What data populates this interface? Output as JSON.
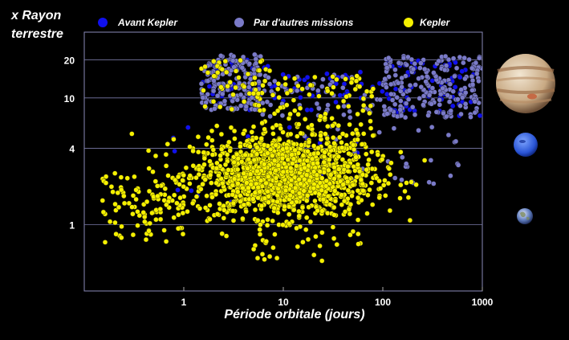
{
  "chart_data": {
    "type": "scatter",
    "ylabel_line1": "x Rayon",
    "ylabel_line2": "terrestre",
    "xlabel": "Période orbitale (jours)",
    "x_scale": "log",
    "y_scale": "log",
    "xlim": [
      0.1,
      1000
    ],
    "ylim": [
      0.3,
      33
    ],
    "x_ticks": [
      {
        "value": 1,
        "label": "1"
      },
      {
        "value": 10,
        "label": "10"
      },
      {
        "value": 100,
        "label": "100"
      },
      {
        "value": 1000,
        "label": "1000"
      }
    ],
    "y_ticks": [
      {
        "value": 1,
        "label": "1"
      },
      {
        "value": 4,
        "label": "4"
      },
      {
        "value": 10,
        "label": "10"
      },
      {
        "value": 20,
        "label": "20"
      }
    ],
    "grid": "horizontal",
    "legend_position": "top",
    "series": [
      {
        "name": "Avant Kepler",
        "color": "#1010ee",
        "clusters": [
          {
            "x_range": [
              1.5,
              8
            ],
            "y_range": [
              8,
              20
            ],
            "count": 40
          },
          {
            "x_range": [
              8,
              100
            ],
            "y_range": [
              8,
              16
            ],
            "count": 40
          },
          {
            "x_range": [
              100,
              1000
            ],
            "y_range": [
              7,
              20
            ],
            "count": 70
          },
          {
            "x_range": [
              0.7,
              60
            ],
            "y_range": [
              1.5,
              6
            ],
            "count": 30
          }
        ]
      },
      {
        "name": "Par d'autres missions",
        "color": "#7a7ac8",
        "clusters": [
          {
            "x_range": [
              1.5,
              6
            ],
            "y_range": [
              8,
              22
            ],
            "count": 180
          },
          {
            "x_range": [
              6,
              100
            ],
            "y_range": [
              7,
              16
            ],
            "count": 60
          },
          {
            "x_range": [
              100,
              1000
            ],
            "y_range": [
              7,
              22
            ],
            "count": 220
          },
          {
            "x_range": [
              10,
              600
            ],
            "y_range": [
              2,
              6
            ],
            "count": 40
          }
        ]
      },
      {
        "name": "Kepler",
        "color": "#f5f000",
        "clusters": [
          {
            "x_log_center": 1.0,
            "y_log_center": 0.38,
            "x_log_sd": 0.45,
            "y_log_sd": 0.16,
            "count": 1500
          },
          {
            "x_range": [
              0.15,
              1
            ],
            "y_range": [
              0.7,
              2.5
            ],
            "count": 90
          },
          {
            "x_range": [
              1.5,
              8
            ],
            "y_range": [
              8,
              20
            ],
            "count": 50
          },
          {
            "x_range": [
              5,
              80
            ],
            "y_range": [
              4,
              15
            ],
            "count": 120
          },
          {
            "x_range": [
              5,
              60
            ],
            "y_range": [
              0.5,
              0.9
            ],
            "count": 25
          }
        ]
      }
    ],
    "planet_images": [
      {
        "icon": "jupiter-icon",
        "radius_earth": 11
      },
      {
        "icon": "neptune-icon",
        "radius_earth": 4
      },
      {
        "icon": "earth-icon",
        "radius_earth": 1
      }
    ]
  }
}
